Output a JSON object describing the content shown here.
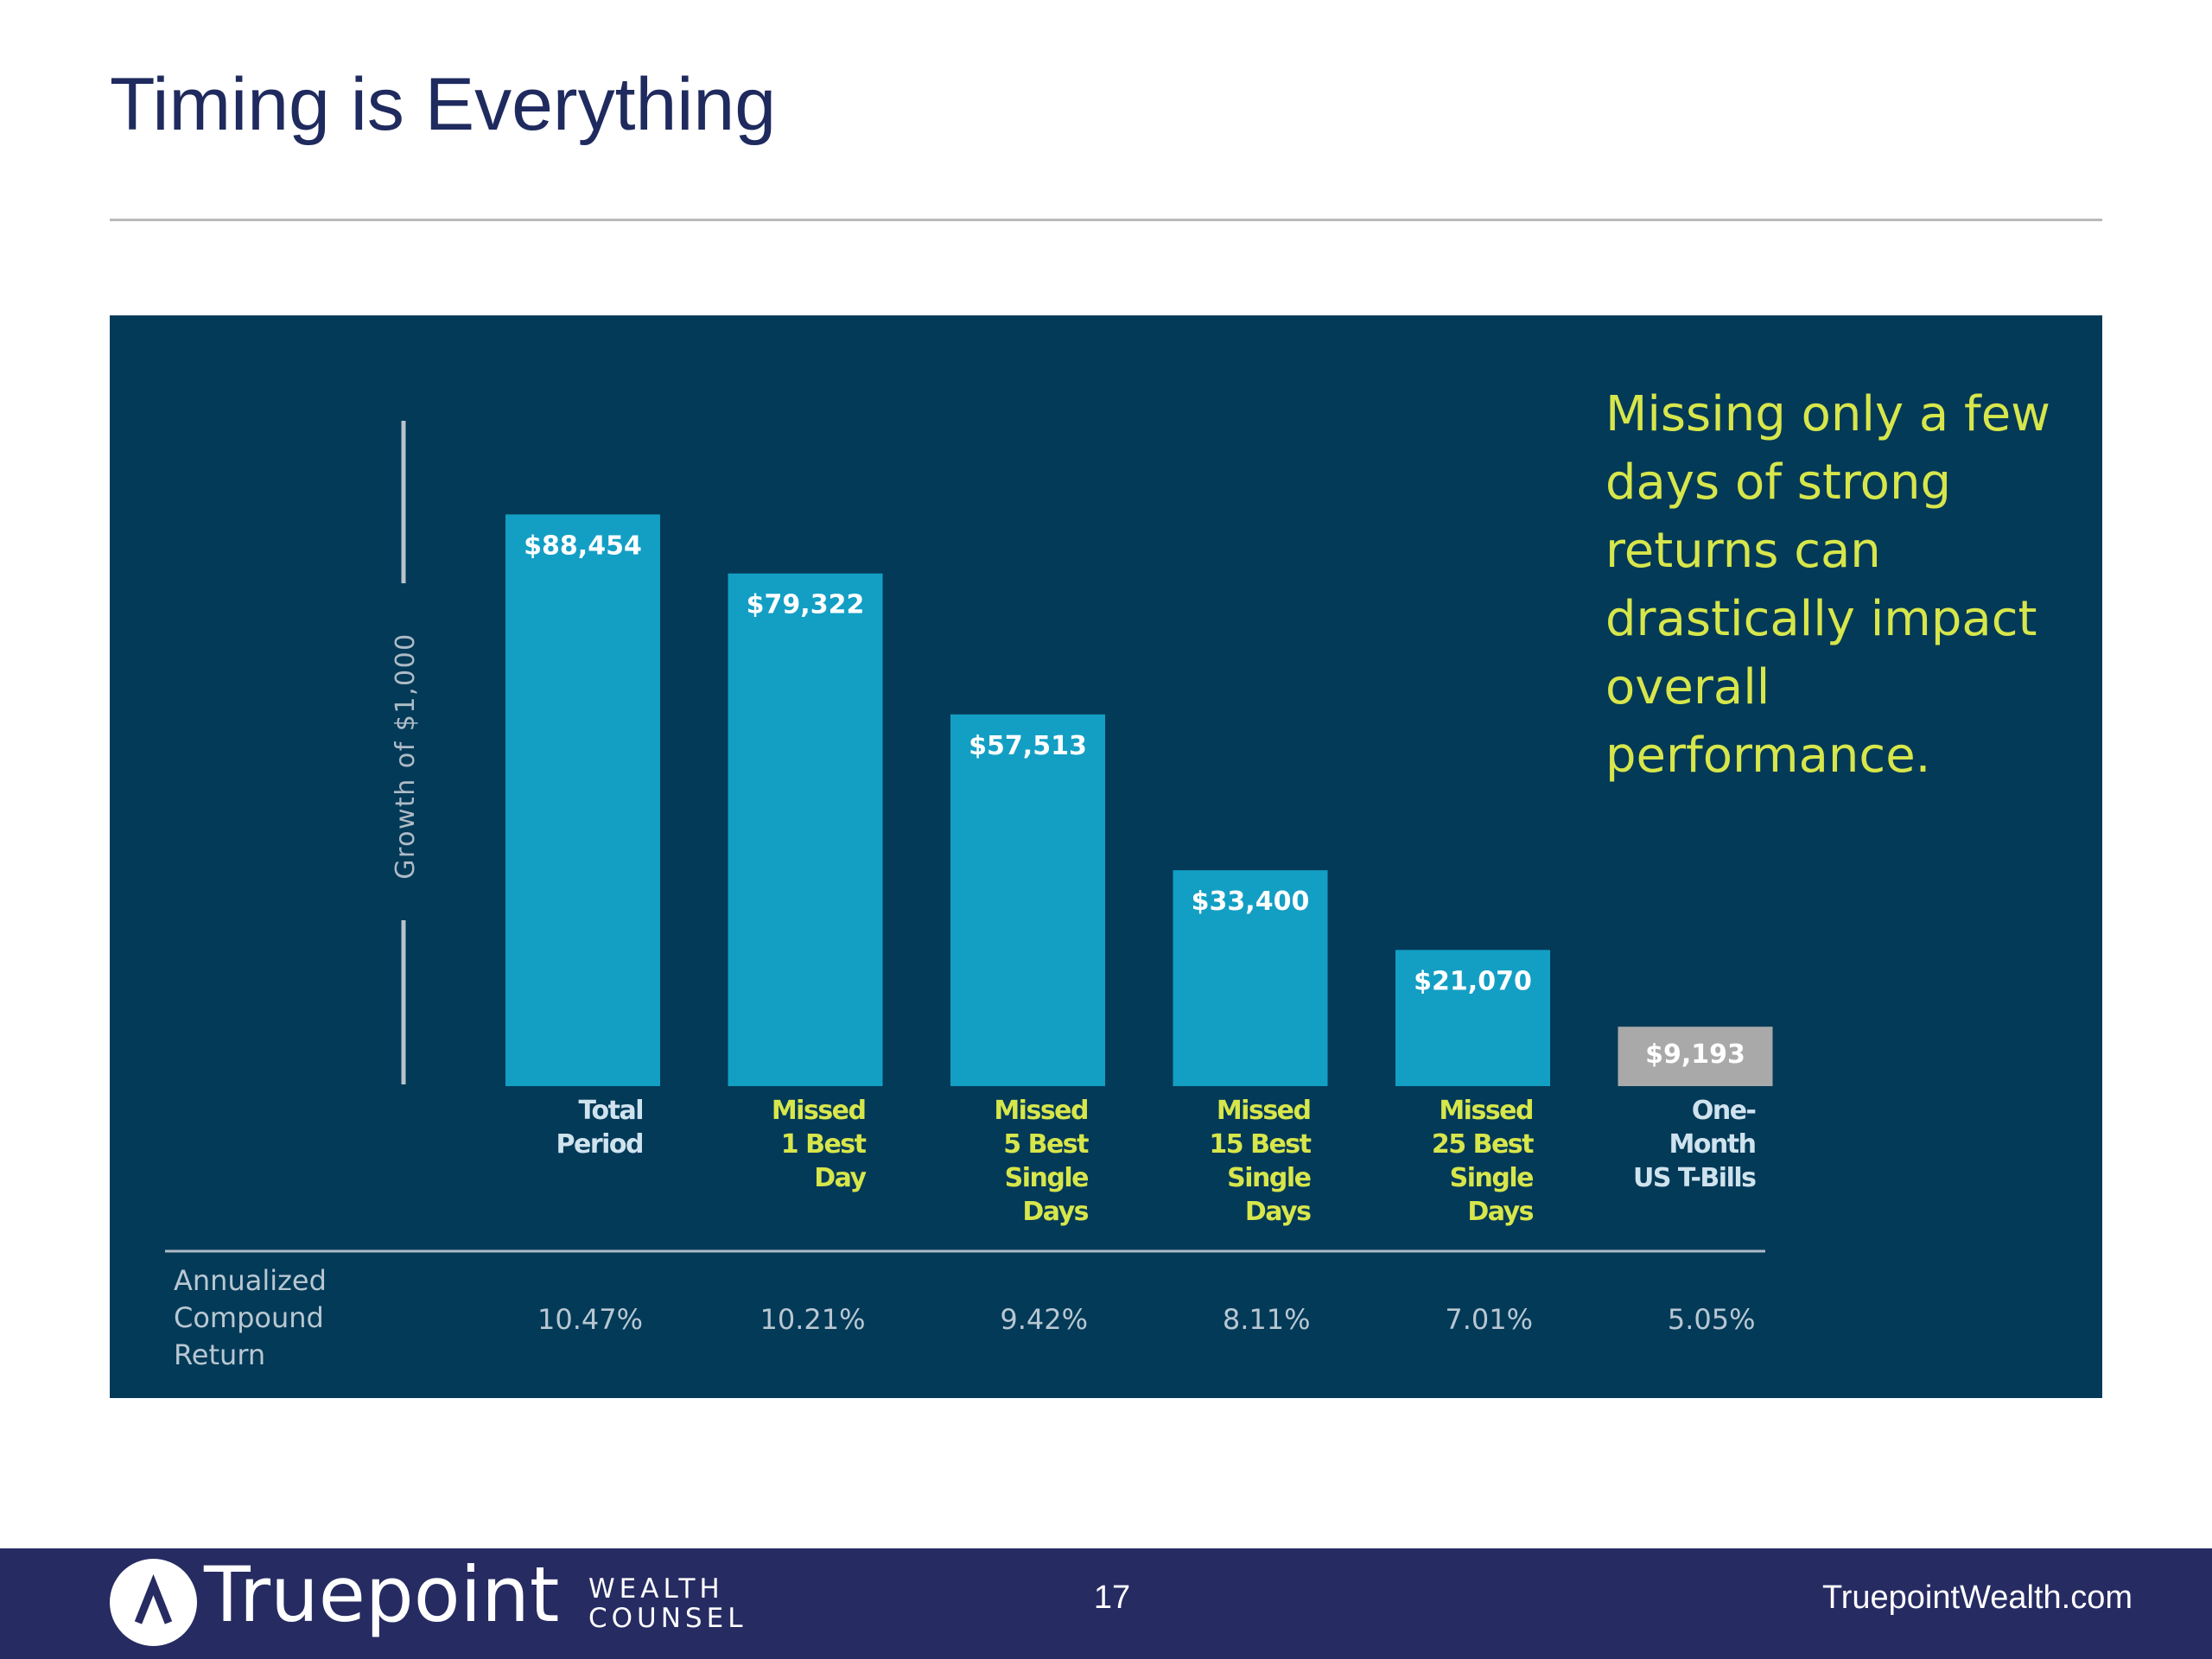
{
  "slide": {
    "title": "Timing is Everything",
    "callout_lines": [
      "Missing only a few",
      "days of strong",
      "returns can",
      "drastically impact",
      "overall performance."
    ]
  },
  "footer": {
    "brand_name": "Truepoint",
    "brand_sub_top": "WEALTH",
    "brand_sub_bottom": "COUNSEL",
    "page_number": "17",
    "site_url": "TruepointWealth.com"
  },
  "colors": {
    "panel_background": "#033a58",
    "bar": "#139fc4",
    "bar_benchmark": "#a9a9a9",
    "label_highlight": "#d7e64a",
    "label_plain": "#cfe3ee",
    "table_text": "#b8c7d2",
    "title": "#1f2a5e",
    "footer": "#262b62"
  },
  "chart_data": {
    "type": "bar",
    "ylabel": "Growth of $1,000",
    "ylim": [
      0,
      100000
    ],
    "categories": [
      [
        "Total",
        "Period"
      ],
      [
        "Missed",
        "1 Best",
        "Day"
      ],
      [
        "Missed",
        "5 Best",
        "Single",
        "Days"
      ],
      [
        "Missed",
        "15 Best",
        "Single",
        "Days"
      ],
      [
        "Missed",
        "25 Best",
        "Single",
        "Days"
      ],
      [
        "One-",
        "Month",
        "US T-Bills"
      ]
    ],
    "category_highlight": [
      false,
      true,
      true,
      true,
      true,
      false
    ],
    "values": [
      88454,
      79322,
      57513,
      33400,
      21070,
      9193
    ],
    "value_labels": [
      "$88,454",
      "$79,322",
      "$57,513",
      "$33,400",
      "$21,070",
      "$9,193"
    ],
    "benchmark_index": 5,
    "table": {
      "row_label": [
        "Annualized",
        "Compound",
        "Return"
      ],
      "values": [
        "10.47%",
        "10.21%",
        "9.42%",
        "8.11%",
        "7.01%",
        "5.05%"
      ]
    }
  }
}
